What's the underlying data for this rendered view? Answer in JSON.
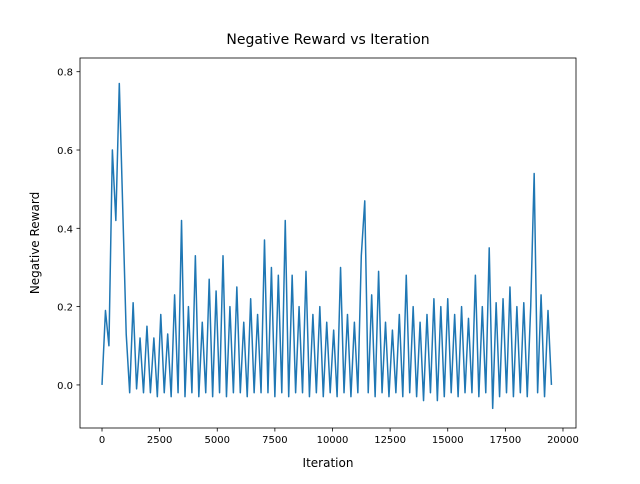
{
  "chart_data": {
    "type": "line",
    "title": "Negative Reward vs Iteration",
    "xlabel": "Iteration",
    "ylabel": "Negative Reward",
    "color": "#1f77b4",
    "grid": false,
    "xlim": [
      -955,
      20565
    ],
    "ylim": [
      -0.11,
      0.835
    ],
    "xticks": [
      0,
      2500,
      5000,
      7500,
      10000,
      12500,
      15000,
      17500,
      20000
    ],
    "yticks": [
      {
        "value": 0,
        "label": "0.0"
      },
      {
        "value": 0.2,
        "label": "0.2"
      },
      {
        "value": 0.4,
        "label": "0.4"
      },
      {
        "value": 0.6,
        "label": "0.6"
      },
      {
        "value": 0.8,
        "label": "0.8"
      }
    ],
    "x": [
      0,
      150,
      300,
      450,
      600,
      750,
      900,
      1050,
      1200,
      1350,
      1500,
      1650,
      1800,
      1950,
      2100,
      2250,
      2400,
      2550,
      2700,
      2850,
      3000,
      3150,
      3300,
      3450,
      3600,
      3750,
      3900,
      4050,
      4200,
      4350,
      4500,
      4650,
      4800,
      4950,
      5100,
      5250,
      5400,
      5550,
      5700,
      5850,
      6000,
      6150,
      6300,
      6450,
      6600,
      6750,
      6900,
      7050,
      7200,
      7350,
      7500,
      7650,
      7800,
      7950,
      8100,
      8250,
      8400,
      8550,
      8700,
      8850,
      9000,
      9150,
      9300,
      9450,
      9600,
      9750,
      9900,
      10050,
      10200,
      10350,
      10500,
      10650,
      10800,
      10950,
      11100,
      11250,
      11400,
      11550,
      11700,
      11850,
      12000,
      12150,
      12300,
      12450,
      12600,
      12750,
      12900,
      13050,
      13200,
      13350,
      13500,
      13650,
      13800,
      13950,
      14100,
      14250,
      14400,
      14550,
      14700,
      14850,
      15000,
      15150,
      15300,
      15450,
      15600,
      15750,
      15900,
      16050,
      16200,
      16350,
      16500,
      16650,
      16800,
      16950,
      17100,
      17250,
      17400,
      17550,
      17700,
      17850,
      18000,
      18150,
      18300,
      18450,
      18600,
      18750,
      18900,
      19050,
      19200,
      19350,
      19500
    ],
    "values": [
      0.0,
      0.19,
      0.1,
      0.6,
      0.42,
      0.77,
      0.45,
      0.13,
      -0.02,
      0.21,
      -0.01,
      0.12,
      -0.02,
      0.15,
      -0.02,
      0.12,
      -0.03,
      0.18,
      -0.02,
      0.13,
      -0.03,
      0.23,
      -0.02,
      0.42,
      -0.03,
      0.2,
      -0.02,
      0.33,
      -0.03,
      0.16,
      -0.02,
      0.27,
      -0.03,
      0.24,
      -0.02,
      0.33,
      -0.03,
      0.2,
      -0.02,
      0.25,
      -0.02,
      0.16,
      -0.03,
      0.22,
      -0.02,
      0.18,
      -0.02,
      0.37,
      -0.02,
      0.3,
      -0.03,
      0.28,
      -0.02,
      0.42,
      -0.03,
      0.28,
      -0.02,
      0.2,
      -0.02,
      0.29,
      -0.03,
      0.18,
      -0.02,
      0.2,
      -0.03,
      0.16,
      -0.02,
      0.14,
      -0.03,
      0.3,
      -0.02,
      0.18,
      -0.03,
      0.16,
      -0.02,
      0.33,
      0.47,
      -0.02,
      0.23,
      -0.03,
      0.29,
      -0.02,
      0.16,
      -0.03,
      0.14,
      -0.02,
      0.18,
      -0.03,
      0.28,
      -0.02,
      0.2,
      -0.03,
      0.16,
      -0.04,
      0.18,
      -0.02,
      0.22,
      -0.04,
      0.2,
      -0.03,
      0.22,
      -0.02,
      0.18,
      -0.03,
      0.2,
      -0.02,
      0.17,
      -0.02,
      0.28,
      -0.03,
      0.2,
      -0.02,
      0.35,
      -0.06,
      0.21,
      -0.03,
      0.22,
      -0.02,
      0.25,
      -0.03,
      0.2,
      -0.02,
      0.21,
      -0.03,
      0.2,
      0.54,
      -0.02,
      0.23,
      -0.03,
      0.19,
      0.0
    ]
  }
}
